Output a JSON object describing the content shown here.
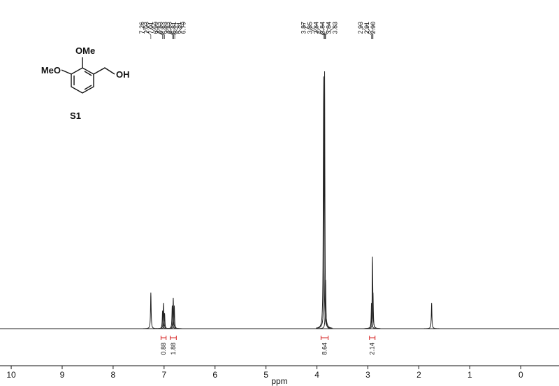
{
  "chart_data": {
    "type": "spectrum",
    "x_label": "ppm",
    "xlim": [
      10.22,
      -0.75
    ],
    "xticks": [
      10,
      9,
      8,
      7,
      6,
      5,
      4,
      3,
      2,
      1,
      0
    ],
    "x": [
      7.26,
      7.03,
      7.01,
      6.99,
      6.84,
      6.82,
      6.8,
      3.87,
      3.85,
      3.83,
      2.93,
      2.91,
      2.9,
      1.75
    ],
    "values": [
      14,
      7,
      10,
      6,
      9,
      12,
      9,
      98,
      100,
      19,
      10,
      28,
      14,
      10
    ],
    "ylim": [
      0,
      100
    ],
    "color": "#222222",
    "peak_labels": [
      {
        "value": 7.26,
        "label": "7.26"
      },
      {
        "value": 7.03,
        "label": "7.03"
      },
      {
        "value": 7.01,
        "label": "7.01"
      },
      {
        "value": 6.99,
        "label": "6.99"
      },
      {
        "value": 6.83,
        "label": "6.83"
      },
      {
        "value": 6.83,
        "label": "6.83"
      },
      {
        "value": 6.83,
        "label": "6.83"
      },
      {
        "value": 6.81,
        "label": "6.81"
      },
      {
        "value": 6.81,
        "label": "6.81"
      },
      {
        "value": 6.79,
        "label": "6.79"
      },
      {
        "value": 3.87,
        "label": "3.87"
      },
      {
        "value": 3.85,
        "label": "3.85"
      },
      {
        "value": 3.84,
        "label": "3.84"
      },
      {
        "value": 3.84,
        "label": "3.84"
      },
      {
        "value": 3.84,
        "label": "3.84"
      },
      {
        "value": 3.83,
        "label": "3.83"
      },
      {
        "value": 2.93,
        "label": "2.93"
      },
      {
        "value": 2.91,
        "label": "2.91"
      },
      {
        "value": 2.9,
        "label": "2.90"
      }
    ],
    "integrals": [
      {
        "value": 0.88,
        "label": "0.88",
        "range": [
          7.06,
          6.96
        ]
      },
      {
        "value": 1.88,
        "label": "1.88",
        "range": [
          6.88,
          6.76
        ]
      },
      {
        "value": 8.64,
        "label": "8.64",
        "range": [
          3.92,
          3.78
        ]
      },
      {
        "value": 2.14,
        "label": "2.14",
        "range": [
          2.97,
          2.86
        ]
      }
    ],
    "integral_color": "#d62020"
  },
  "structure": {
    "labels": [
      "OMe",
      "MeO",
      "OH"
    ],
    "name": "S1"
  }
}
